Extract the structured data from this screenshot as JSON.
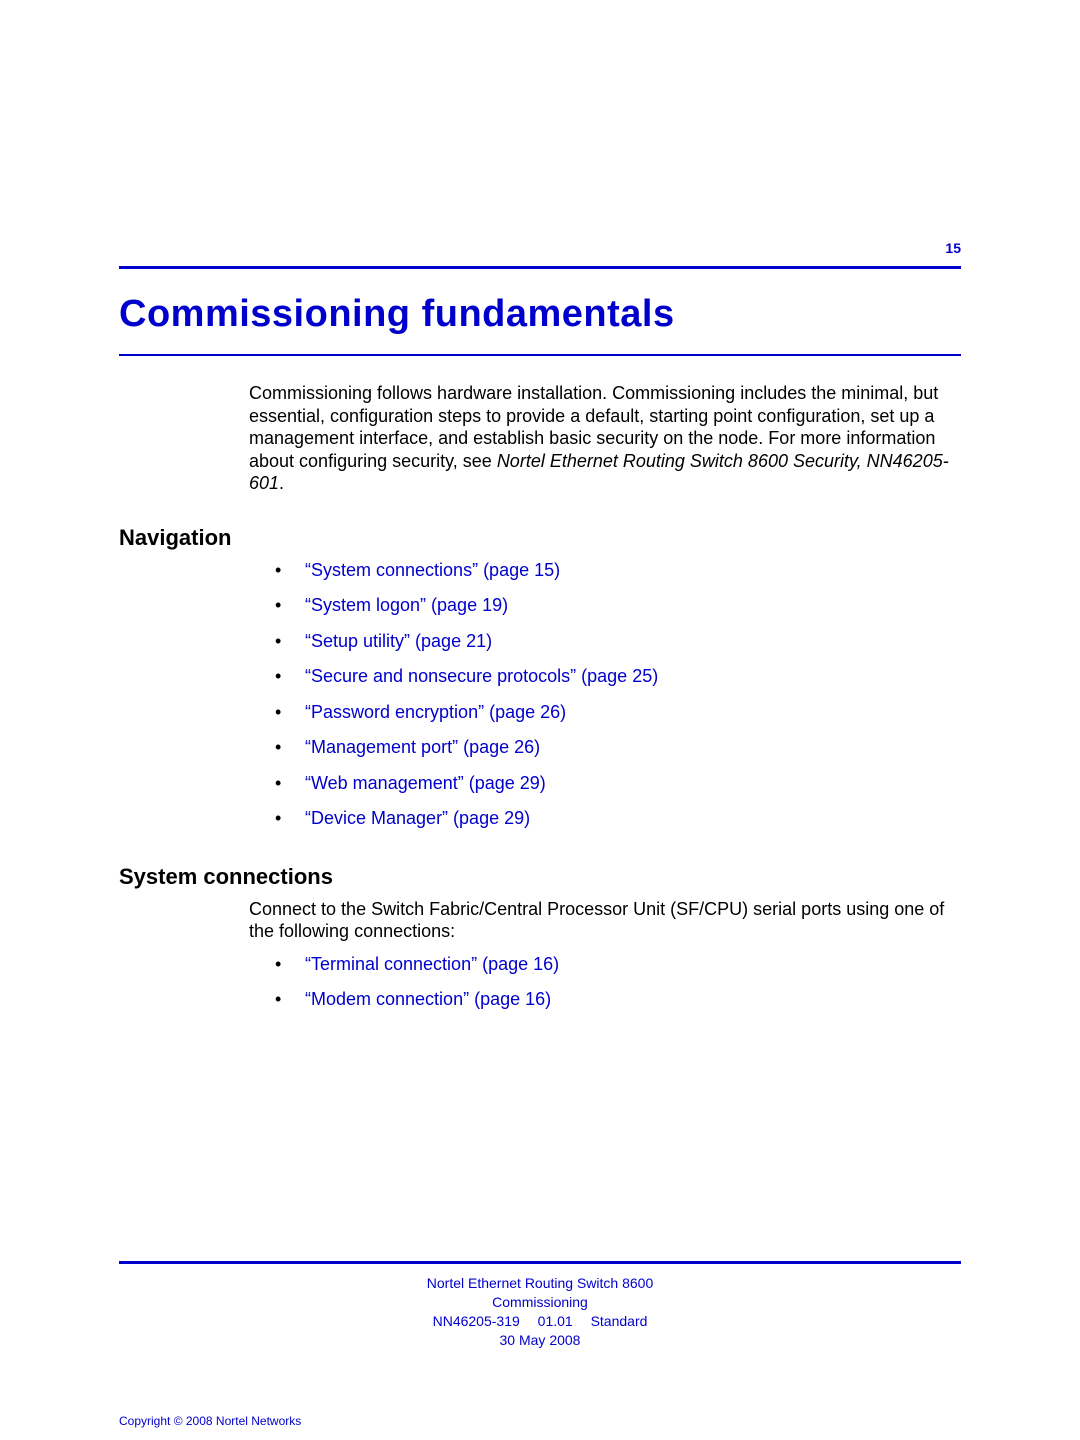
{
  "colors": {
    "link_blue": "#0000cc",
    "text_black": "#000000",
    "background": "#ffffff"
  },
  "typography": {
    "chapter_title_size_pt": 28,
    "section_heading_size_pt": 16,
    "body_size_pt": 13,
    "footer_size_pt": 10,
    "copyright_size_pt": 9
  },
  "page_number": "15",
  "chapter_title": "Commissioning fundamentals",
  "intro": {
    "body": "Commissioning follows hardware installation. Commissioning includes the minimal, but essential, configuration steps to provide a default, starting point configuration, set up a management interface, and establish basic security on the node. For more information about configuring security, see ",
    "italic_ref": "Nortel Ethernet Routing Switch 8600 Security, NN46205-601",
    "after_italic": "."
  },
  "navigation": {
    "heading": "Navigation",
    "items": [
      "“System connections” (page 15)",
      "“System logon” (page 19)",
      "“Setup utility” (page 21)",
      "“Secure and nonsecure protocols” (page 25)",
      "“Password encryption” (page 26)",
      "“Management port” (page 26)",
      "“Web management” (page 29)",
      "“Device Manager” (page 29)"
    ]
  },
  "system_connections": {
    "heading": "System connections",
    "body": "Connect to the Switch Fabric/Central Processor Unit (SF/CPU) serial ports using one of the following connections:",
    "items": [
      "“Terminal connection” (page 16)",
      "“Modem connection” (page 16)"
    ]
  },
  "footer": {
    "line1": "Nortel Ethernet Routing Switch 8600",
    "line2": "Commissioning",
    "line3": "NN46205-319  01.01  Standard",
    "line4": "30 May 2008"
  },
  "copyright": "Copyright © 2008 Nortel Networks"
}
